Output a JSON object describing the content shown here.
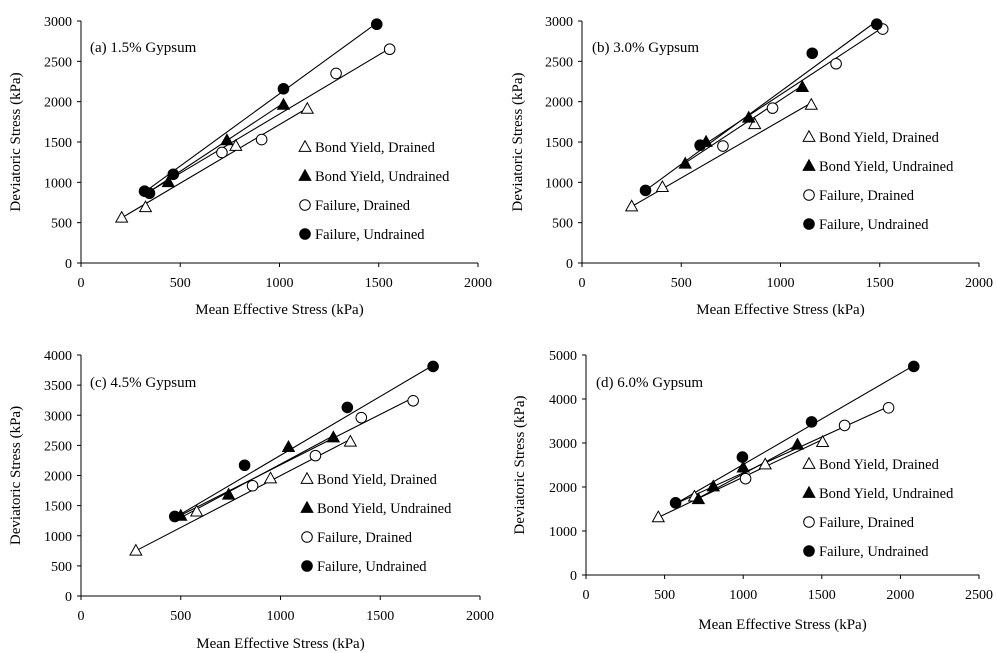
{
  "chart_data": [
    {
      "type": "scatter",
      "title": "(a) 1.5% Gypsum",
      "xlabel": "Mean Effective Stress (kPa)",
      "ylabel": "Deviatoric Stress (kPa)",
      "xlim": [
        0,
        2000
      ],
      "ylim": [
        0,
        3000
      ],
      "xticks": [
        "0",
        "500",
        "1000",
        "1500",
        "2000"
      ],
      "yticks": [
        "0",
        "500",
        "1000",
        "1500",
        "2000",
        "2500",
        "3000"
      ],
      "legend_position": "right",
      "series": [
        {
          "name": "Bond Yield, Drained",
          "marker": "triangle-open",
          "points": [
            [
              205,
              560
            ],
            [
              325,
              690
            ],
            [
              780,
              1450
            ],
            [
              1140,
              1910
            ]
          ],
          "fit": [
            [
              205,
              560
            ],
            [
              1140,
              1920
            ]
          ]
        },
        {
          "name": "Bond Yield, Undrained",
          "marker": "triangle-filled",
          "points": [
            [
              440,
              1000
            ],
            [
              735,
              1520
            ],
            [
              1020,
              1960
            ]
          ],
          "fit": [
            [
              330,
              860
            ],
            [
              1025,
              1990
            ]
          ]
        },
        {
          "name": "Failure, Drained",
          "marker": "circle-open",
          "points": [
            [
              710,
              1370
            ],
            [
              910,
              1530
            ],
            [
              1285,
              2350
            ],
            [
              1555,
              2650
            ]
          ],
          "fit": [
            [
              320,
              850
            ],
            [
              1555,
              2660
            ]
          ]
        },
        {
          "name": "Failure, Undrained",
          "marker": "circle-filled",
          "points": [
            [
              320,
              890
            ],
            [
              345,
              865
            ],
            [
              465,
              1100
            ],
            [
              1020,
              2160
            ],
            [
              1490,
              2960
            ]
          ],
          "fit": [
            [
              320,
              880
            ],
            [
              1490,
              2975
            ]
          ]
        }
      ]
    },
    {
      "type": "scatter",
      "title": "(b) 3.0% Gypsum",
      "xlabel": "Mean Effective Stress (kPa)",
      "ylabel": "Deviatoric Stress (kPa)",
      "xlim": [
        0,
        2000
      ],
      "ylim": [
        0,
        3000
      ],
      "xticks": [
        "0",
        "500",
        "1000",
        "1500",
        "2000"
      ],
      "yticks": [
        "0",
        "500",
        "1000",
        "1500",
        "2000",
        "2500",
        "3000"
      ],
      "legend_position": "right",
      "series": [
        {
          "name": "Bond Yield, Drained",
          "marker": "triangle-open",
          "points": [
            [
              250,
              700
            ],
            [
              405,
              940
            ],
            [
              870,
              1720
            ],
            [
              1155,
              1960
            ]
          ],
          "fit": [
            [
              250,
              700
            ],
            [
              1155,
              1985
            ]
          ]
        },
        {
          "name": "Bond Yield, Undrained",
          "marker": "triangle-filled",
          "points": [
            [
              520,
              1230
            ],
            [
              625,
              1500
            ],
            [
              840,
              1800
            ],
            [
              1110,
              2180
            ]
          ],
          "fit": [
            [
              520,
              1240
            ],
            [
              1110,
              2200
            ]
          ]
        },
        {
          "name": "Failure, Drained",
          "marker": "circle-open",
          "points": [
            [
              710,
              1450
            ],
            [
              960,
              1920
            ],
            [
              1280,
              2470
            ],
            [
              1515,
              2900
            ]
          ],
          "fit": [
            [
              575,
              1400
            ],
            [
              1515,
              2920
            ]
          ]
        },
        {
          "name": "Failure, Undrained",
          "marker": "circle-filled",
          "points": [
            [
              320,
              900
            ],
            [
              595,
              1460
            ],
            [
              1160,
              2600
            ],
            [
              1485,
              2960
            ]
          ],
          "fit": [
            [
              320,
              900
            ],
            [
              1485,
              3000
            ]
          ]
        }
      ]
    },
    {
      "type": "scatter",
      "title": "(c) 4.5% Gypsum",
      "xlabel": "Mean Effective Stress (kPa)",
      "ylabel": "Deviatoric Stress (kPa)",
      "xlim": [
        0,
        2000
      ],
      "ylim": [
        0,
        4000
      ],
      "xticks": [
        "0",
        "500",
        "1000",
        "1500",
        "2000"
      ],
      "yticks": [
        "0",
        "500",
        "1000",
        "1500",
        "2000",
        "2500",
        "3000",
        "3500",
        "4000"
      ],
      "legend_position": "right",
      "series": [
        {
          "name": "Bond Yield, Drained",
          "marker": "triangle-open",
          "points": [
            [
              275,
              750
            ],
            [
              580,
              1400
            ],
            [
              950,
              1950
            ],
            [
              1350,
              2560
            ]
          ],
          "fit": [
            [
              275,
              750
            ],
            [
              1350,
              2600
            ]
          ]
        },
        {
          "name": "Bond Yield, Undrained",
          "marker": "triangle-filled",
          "points": [
            [
              500,
              1330
            ],
            [
              740,
              1680
            ],
            [
              1040,
              2470
            ],
            [
              1265,
              2630
            ]
          ],
          "fit": [
            [
              500,
              1300
            ],
            [
              1265,
              2660
            ]
          ]
        },
        {
          "name": "Failure, Drained",
          "marker": "circle-open",
          "points": [
            [
              860,
              1830
            ],
            [
              1175,
              2330
            ],
            [
              1405,
              2960
            ],
            [
              1665,
              3240
            ]
          ],
          "fit": [
            [
              470,
              1290
            ],
            [
              1665,
              3290
            ]
          ]
        },
        {
          "name": "Failure, Undrained",
          "marker": "circle-filled",
          "points": [
            [
              470,
              1320
            ],
            [
              820,
              2170
            ],
            [
              1335,
              3130
            ],
            [
              1765,
              3810
            ]
          ],
          "fit": [
            [
              470,
              1300
            ],
            [
              1765,
              3830
            ]
          ]
        }
      ]
    },
    {
      "type": "scatter",
      "title": "(d) 6.0% Gypsum",
      "xlabel": "Mean Effective Stress (kPa)",
      "ylabel": "Deviatoric Stress (kPa)",
      "xlim": [
        0,
        2500
      ],
      "ylim": [
        0,
        5000
      ],
      "xticks": [
        "0",
        "500",
        "1000",
        "1500",
        "2000",
        "2500"
      ],
      "yticks": [
        "0",
        "1000",
        "2000",
        "3000",
        "4000",
        "5000"
      ],
      "legend_position": "right",
      "series": [
        {
          "name": "Bond Yield, Drained",
          "marker": "triangle-open",
          "points": [
            [
              460,
              1310
            ],
            [
              690,
              1780
            ],
            [
              1140,
              2510
            ],
            [
              1505,
              3020
            ]
          ],
          "fit": [
            [
              460,
              1310
            ],
            [
              1505,
              3080
            ]
          ]
        },
        {
          "name": "Bond Yield, Undrained",
          "marker": "triangle-filled",
          "points": [
            [
              715,
              1720
            ],
            [
              810,
              2010
            ],
            [
              1000,
              2440
            ],
            [
              1345,
              2960
            ]
          ],
          "fit": [
            [
              690,
              1700
            ],
            [
              1345,
              2960
            ]
          ]
        },
        {
          "name": "Failure, Drained",
          "marker": "circle-open",
          "points": [
            [
              1015,
              2190
            ],
            [
              1645,
              3400
            ],
            [
              1925,
              3800
            ]
          ],
          "fit": [
            [
              570,
              1620
            ],
            [
              1925,
              3830
            ]
          ]
        },
        {
          "name": "Failure, Undrained",
          "marker": "circle-filled",
          "points": [
            [
              570,
              1640
            ],
            [
              995,
              2680
            ],
            [
              1435,
              3480
            ],
            [
              2085,
              4740
            ]
          ],
          "fit": [
            [
              570,
              1620
            ],
            [
              2085,
              4760
            ]
          ]
        }
      ]
    }
  ]
}
